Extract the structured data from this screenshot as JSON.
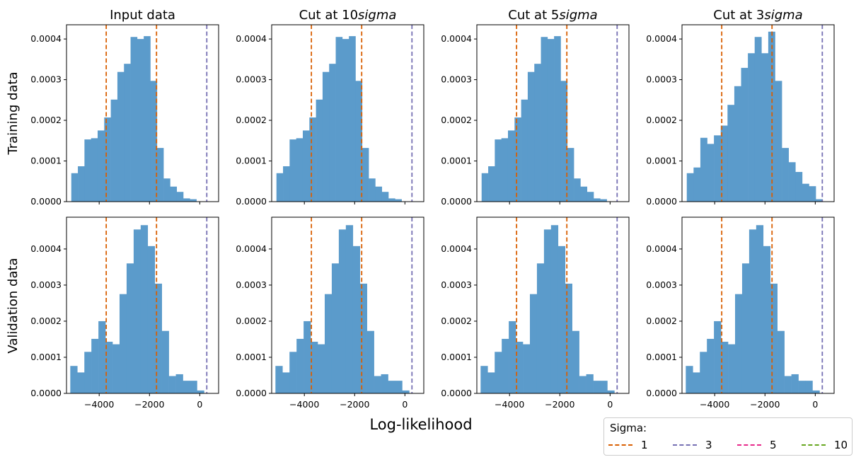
{
  "figure": {
    "xlabel": "Log-likelihood",
    "row_labels": [
      "Training data",
      "Validation data"
    ],
    "col_titles": [
      {
        "text": "Input data",
        "italic": ""
      },
      {
        "text": "Cut at 10",
        "italic": "sigma"
      },
      {
        "text": "Cut at 5",
        "italic": "sigma"
      },
      {
        "text": "Cut at 3",
        "italic": "sigma"
      }
    ],
    "legend": {
      "title": "Sigma:",
      "items": [
        {
          "label": "1",
          "color": "#d95f02"
        },
        {
          "label": "3",
          "color": "#7570b3"
        },
        {
          "label": "5",
          "color": "#e7298a"
        },
        {
          "label": "10",
          "color": "#66a61e"
        }
      ]
    },
    "bar_color": "#5b9bcb"
  },
  "chart_data": {
    "type": "bar",
    "xlim": [
      -5300,
      750
    ],
    "x_ticks": [
      -4000,
      -2000,
      0
    ],
    "x_tick_labels": [
      "−4000",
      "−2000",
      "0"
    ],
    "vlines": [
      {
        "x": -3720,
        "sigma": "1",
        "color": "#d95f02"
      },
      {
        "x": -1720,
        "sigma": "1",
        "color": "#d95f02"
      },
      {
        "x": 280,
        "sigma": "3",
        "color": "#7570b3"
      }
    ],
    "rows": [
      {
        "name": "Training data",
        "ylim": [
          0,
          0.000435
        ],
        "y_ticks": [
          0,
          0.0001,
          0.0002,
          0.0003,
          0.0004
        ],
        "y_tick_labels": [
          "0.0000",
          "0.0001",
          "0.0002",
          "0.0003",
          "0.0004"
        ],
        "panels": [
          {
            "title": "Input data",
            "bin_start": -5110,
            "bin_width": 262,
            "values": [
              7e-05,
              8.7e-05,
              0.000153,
              0.000156,
              0.000175,
              0.000207,
              0.000251,
              0.000319,
              0.000339,
              0.000405,
              0.0004,
              0.000407,
              0.000297,
              0.000132,
              5.7e-05,
              3.7e-05,
              2.4e-05,
              8e-06,
              6e-06
            ]
          },
          {
            "title": "Cut at 10sigma",
            "bin_start": -5110,
            "bin_width": 262,
            "values": [
              7e-05,
              8.7e-05,
              0.000153,
              0.000156,
              0.000175,
              0.000207,
              0.000251,
              0.000319,
              0.000339,
              0.000405,
              0.0004,
              0.000407,
              0.000297,
              0.000132,
              5.7e-05,
              3.7e-05,
              2.4e-05,
              8e-06,
              6e-06
            ]
          },
          {
            "title": "Cut at 5sigma",
            "bin_start": -5110,
            "bin_width": 262,
            "values": [
              7e-05,
              8.7e-05,
              0.000153,
              0.000156,
              0.000175,
              0.000207,
              0.000251,
              0.000319,
              0.000339,
              0.000405,
              0.0004,
              0.000407,
              0.000297,
              0.000132,
              5.7e-05,
              3.7e-05,
              2.4e-05,
              8e-06,
              6e-06
            ]
          },
          {
            "title": "Cut at 3sigma",
            "bin_start": -5110,
            "bin_width": 270,
            "values": [
              7e-05,
              8.4e-05,
              0.000157,
              0.000142,
              0.000163,
              0.000187,
              0.000238,
              0.000284,
              0.000329,
              0.000365,
              0.000405,
              0.000365,
              0.000418,
              0.000297,
              0.000132,
              9.7e-05,
              7.3e-05,
              4.4e-05,
              3.8e-05,
              6e-06
            ]
          }
        ]
      },
      {
        "name": "Validation data",
        "ylim": [
          0,
          0.000488
        ],
        "y_ticks": [
          0,
          0.0001,
          0.0002,
          0.0003,
          0.0004
        ],
        "y_tick_labels": [
          "0.0000",
          "0.0001",
          "0.0002",
          "0.0003",
          "0.0004"
        ],
        "panels": [
          {
            "title": "Input data",
            "bin_start": -5150,
            "bin_width": 280,
            "values": [
              7.6e-05,
              5.8e-05,
              0.000115,
              0.000151,
              0.0002,
              0.000143,
              0.000136,
              0.000275,
              0.00036,
              0.000454,
              0.000466,
              0.000408,
              0.000304,
              0.000173,
              4.8e-05,
              5.3e-05,
              3.5e-05,
              3.5e-05,
              8e-06
            ]
          },
          {
            "title": "Cut at 10sigma",
            "bin_start": -5150,
            "bin_width": 280,
            "values": [
              7.6e-05,
              5.8e-05,
              0.000115,
              0.000151,
              0.0002,
              0.000143,
              0.000136,
              0.000275,
              0.00036,
              0.000454,
              0.000466,
              0.000408,
              0.000304,
              0.000173,
              4.8e-05,
              5.3e-05,
              3.5e-05,
              3.5e-05,
              8e-06
            ]
          },
          {
            "title": "Cut at 5sigma",
            "bin_start": -5150,
            "bin_width": 280,
            "values": [
              7.6e-05,
              5.8e-05,
              0.000115,
              0.000151,
              0.0002,
              0.000143,
              0.000136,
              0.000275,
              0.00036,
              0.000454,
              0.000466,
              0.000408,
              0.000304,
              0.000173,
              4.8e-05,
              5.3e-05,
              3.5e-05,
              3.5e-05,
              8e-06
            ]
          },
          {
            "title": "Cut at 3sigma",
            "bin_start": -5150,
            "bin_width": 280,
            "values": [
              7.6e-05,
              5.8e-05,
              0.000115,
              0.000151,
              0.0002,
              0.000143,
              0.000136,
              0.000275,
              0.00036,
              0.000454,
              0.000466,
              0.000408,
              0.000304,
              0.000173,
              4.8e-05,
              5.3e-05,
              3.5e-05,
              3.5e-05,
              8e-06
            ]
          }
        ]
      }
    ]
  }
}
